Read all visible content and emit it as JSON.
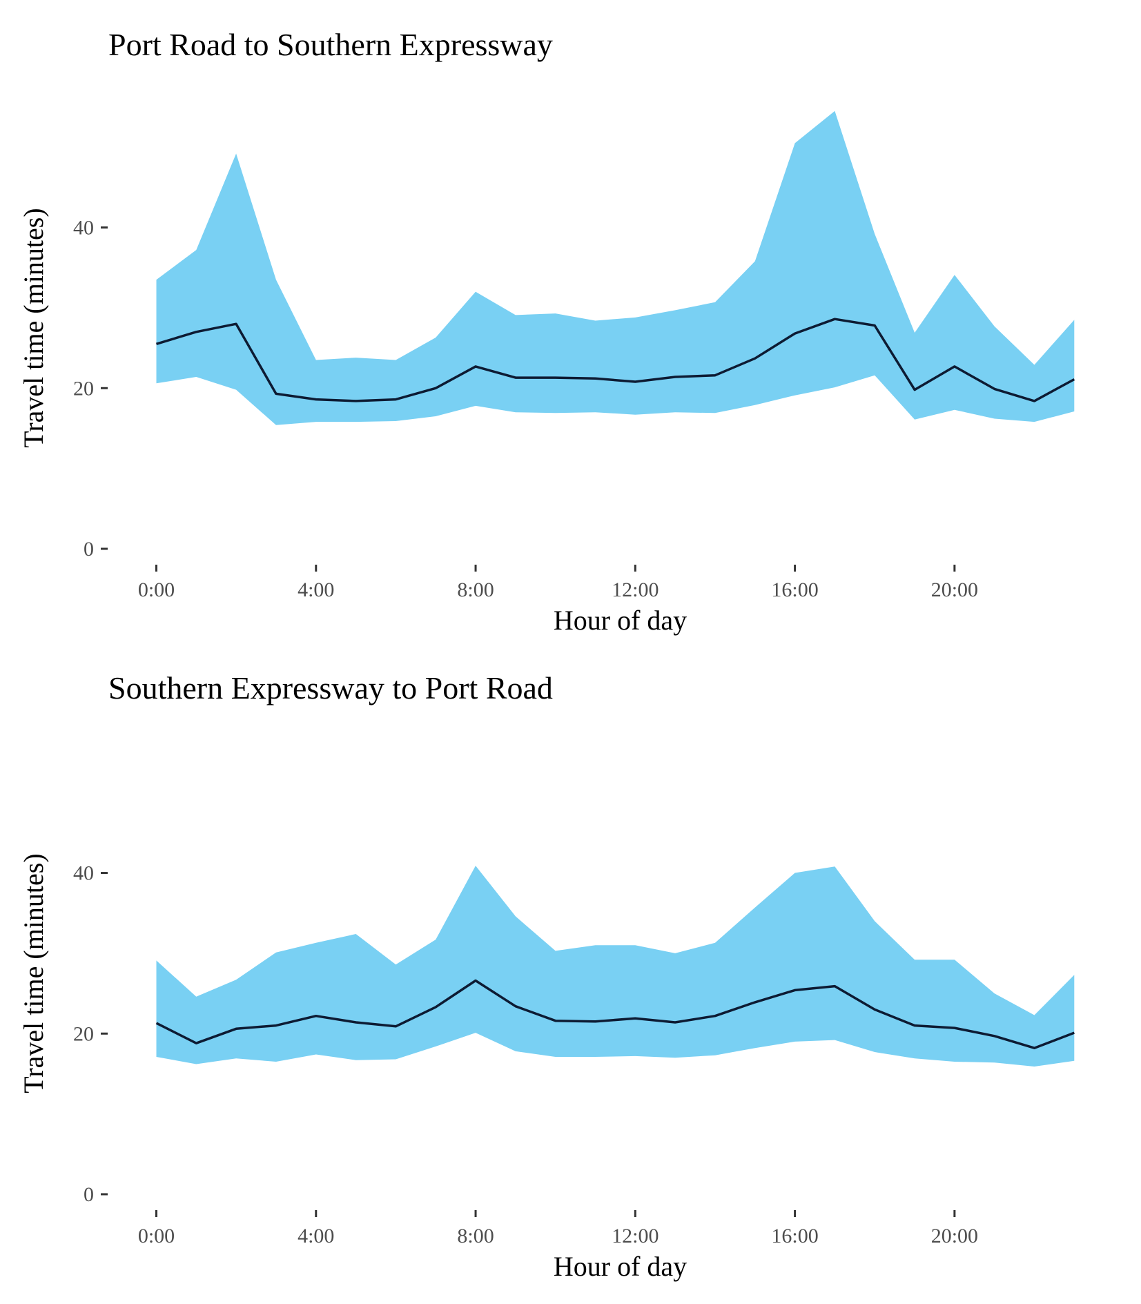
{
  "chart_data": [
    {
      "type": "area",
      "title": "Port Road to Southern Expressway",
      "xlabel": "Hour of day",
      "ylabel": "Travel time (minutes)",
      "x": [
        0,
        1,
        2,
        3,
        4,
        5,
        6,
        7,
        8,
        9,
        10,
        11,
        12,
        13,
        14,
        15,
        16,
        17,
        18,
        19,
        20,
        21,
        22,
        23
      ],
      "x_ticks": [
        0,
        4,
        8,
        12,
        16,
        20
      ],
      "x_tick_labels": [
        "0:00",
        "4:00",
        "8:00",
        "12:00",
        "16:00",
        "20:00"
      ],
      "y_ticks": [
        0,
        20,
        40
      ],
      "y_tick_labels": [
        "0",
        "20",
        "40"
      ],
      "xlim": [
        -1.15,
        23.15
      ],
      "ylim": [
        0,
        55
      ],
      "grid": false,
      "band_color": "#79d0f3",
      "line_color": "#0d1b33",
      "series": [
        {
          "role": "median",
          "values": [
            25.5,
            27.0,
            28.0,
            19.3,
            18.6,
            18.4,
            18.6,
            20.0,
            22.7,
            21.3,
            21.3,
            21.2,
            20.8,
            21.4,
            21.6,
            23.7,
            26.8,
            28.6,
            27.8,
            19.8,
            22.7,
            19.9,
            18.4,
            21.1
          ]
        },
        {
          "role": "upper",
          "values": [
            33.5,
            37.2,
            49.2,
            33.5,
            23.5,
            23.8,
            23.5,
            26.3,
            32.0,
            29.1,
            29.3,
            28.4,
            28.8,
            29.7,
            30.7,
            35.8,
            50.5,
            54.5,
            39.2,
            26.9,
            34.1,
            27.7,
            22.9,
            28.5
          ]
        },
        {
          "role": "lower",
          "values": [
            20.6,
            21.4,
            19.8,
            15.4,
            15.8,
            15.8,
            15.9,
            16.5,
            17.8,
            17.0,
            16.9,
            17.0,
            16.7,
            17.0,
            16.9,
            17.9,
            19.1,
            20.1,
            21.6,
            16.1,
            17.3,
            16.2,
            15.8,
            17.1
          ]
        }
      ]
    },
    {
      "type": "area",
      "title": "Southern Expressway to Port Road",
      "xlabel": "Hour of day",
      "ylabel": "Travel time (minutes)",
      "x": [
        0,
        1,
        2,
        3,
        4,
        5,
        6,
        7,
        8,
        9,
        10,
        11,
        12,
        13,
        14,
        15,
        16,
        17,
        18,
        19,
        20,
        21,
        22,
        23
      ],
      "x_ticks": [
        0,
        4,
        8,
        12,
        16,
        20
      ],
      "x_tick_labels": [
        "0:00",
        "4:00",
        "8:00",
        "12:00",
        "16:00",
        "20:00"
      ],
      "y_ticks": [
        0,
        20,
        40
      ],
      "y_tick_labels": [
        "0",
        "20",
        "40"
      ],
      "xlim": [
        -1.15,
        23.15
      ],
      "ylim": [
        0,
        55
      ],
      "grid": false,
      "band_color": "#79d0f3",
      "line_color": "#0d1b33",
      "series": [
        {
          "role": "median",
          "values": [
            21.3,
            18.8,
            20.6,
            21.0,
            22.2,
            21.4,
            20.9,
            23.3,
            26.6,
            23.4,
            21.6,
            21.5,
            21.9,
            21.4,
            22.2,
            23.9,
            25.4,
            25.9,
            23.0,
            21.0,
            20.7,
            19.7,
            18.2,
            20.1
          ]
        },
        {
          "role": "upper",
          "values": [
            29.1,
            24.6,
            26.7,
            30.1,
            31.3,
            32.4,
            28.6,
            31.7,
            40.9,
            34.6,
            30.3,
            31.0,
            31.0,
            30.0,
            31.3,
            35.7,
            40.0,
            40.8,
            34.0,
            29.2,
            29.2,
            25.0,
            22.3,
            27.3
          ]
        },
        {
          "role": "lower",
          "values": [
            17.1,
            16.2,
            16.9,
            16.5,
            17.4,
            16.7,
            16.8,
            18.4,
            20.1,
            17.8,
            17.1,
            17.1,
            17.2,
            17.0,
            17.3,
            18.2,
            19.0,
            19.2,
            17.7,
            16.9,
            16.5,
            16.4,
            15.9,
            16.6
          ]
        }
      ]
    }
  ]
}
